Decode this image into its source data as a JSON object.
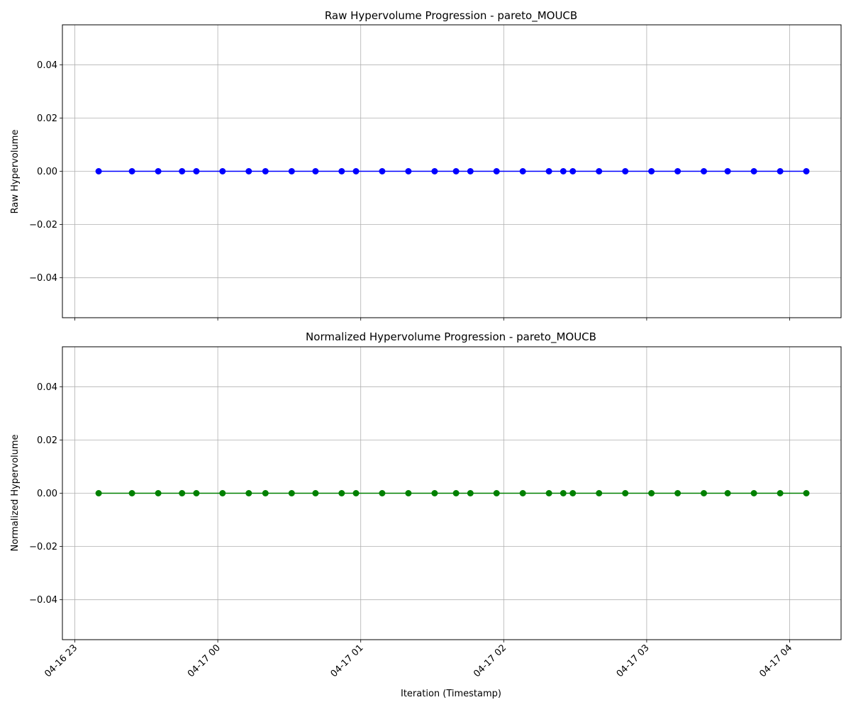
{
  "chart_data": [
    {
      "type": "line",
      "title": "Raw Hypervolume Progression - pareto_MOUCB",
      "xlabel": "",
      "ylabel": "Raw Hypervolume",
      "ylim": [
        -0.055,
        0.055
      ],
      "yticks": [
        -0.04,
        -0.02,
        0.0,
        0.02,
        0.04
      ],
      "ytick_labels": [
        "−0.04",
        "−0.02",
        "0.00",
        "0.02",
        "0.04"
      ],
      "grid": true,
      "marker": "circle",
      "color": "#0000ff",
      "series": [
        {
          "x": [
            "2025-04-16 23:10",
            "2025-04-16 23:24",
            "2025-04-16 23:35",
            "2025-04-16 23:45",
            "2025-04-16 23:51",
            "2025-04-17 00:02",
            "2025-04-17 00:13",
            "2025-04-17 00:20",
            "2025-04-17 00:31",
            "2025-04-17 00:41",
            "2025-04-17 00:52",
            "2025-04-17 00:58",
            "2025-04-17 01:09",
            "2025-04-17 01:20",
            "2025-04-17 01:31",
            "2025-04-17 01:40",
            "2025-04-17 01:46",
            "2025-04-17 01:57",
            "2025-04-17 02:08",
            "2025-04-17 02:19",
            "2025-04-17 02:25",
            "2025-04-17 02:29",
            "2025-04-17 02:40",
            "2025-04-17 02:51",
            "2025-04-17 03:02",
            "2025-04-17 03:13",
            "2025-04-17 03:24",
            "2025-04-17 03:34",
            "2025-04-17 03:45",
            "2025-04-17 03:56",
            "2025-04-17 04:07"
          ],
          "y": [
            0,
            0,
            0,
            0,
            0,
            0,
            0,
            0,
            0,
            0,
            0,
            0,
            0,
            0,
            0,
            0,
            0,
            0,
            0,
            0,
            0,
            0,
            0,
            0,
            0,
            0,
            0,
            0,
            0,
            0,
            0
          ]
        }
      ]
    },
    {
      "type": "line",
      "title": "Normalized Hypervolume Progression - pareto_MOUCB",
      "xlabel": "Iteration (Timestamp)",
      "ylabel": "Normalized Hypervolume",
      "ylim": [
        -0.055,
        0.055
      ],
      "yticks": [
        -0.04,
        -0.02,
        0.0,
        0.02,
        0.04
      ],
      "ytick_labels": [
        "−0.04",
        "−0.02",
        "0.00",
        "0.02",
        "0.04"
      ],
      "grid": true,
      "marker": "circle",
      "color": "#008000",
      "xticks": [
        "2025-04-16 23:00",
        "2025-04-17 00:00",
        "2025-04-17 01:00",
        "2025-04-17 02:00",
        "2025-04-17 03:00",
        "2025-04-17 04:00"
      ],
      "xtick_labels": [
        "04-16 23",
        "04-17 00",
        "04-17 01",
        "04-17 02",
        "04-17 03",
        "04-17 04"
      ],
      "series": [
        {
          "x": [
            "2025-04-16 23:10",
            "2025-04-16 23:24",
            "2025-04-16 23:35",
            "2025-04-16 23:45",
            "2025-04-16 23:51",
            "2025-04-17 00:02",
            "2025-04-17 00:13",
            "2025-04-17 00:20",
            "2025-04-17 00:31",
            "2025-04-17 00:41",
            "2025-04-17 00:52",
            "2025-04-17 00:58",
            "2025-04-17 01:09",
            "2025-04-17 01:20",
            "2025-04-17 01:31",
            "2025-04-17 01:40",
            "2025-04-17 01:46",
            "2025-04-17 01:57",
            "2025-04-17 02:08",
            "2025-04-17 02:19",
            "2025-04-17 02:25",
            "2025-04-17 02:29",
            "2025-04-17 02:40",
            "2025-04-17 02:51",
            "2025-04-17 03:02",
            "2025-04-17 03:13",
            "2025-04-17 03:24",
            "2025-04-17 03:34",
            "2025-04-17 03:45",
            "2025-04-17 03:56",
            "2025-04-17 04:07"
          ],
          "y": [
            0,
            0,
            0,
            0,
            0,
            0,
            0,
            0,
            0,
            0,
            0,
            0,
            0,
            0,
            0,
            0,
            0,
            0,
            0,
            0,
            0,
            0,
            0,
            0,
            0,
            0,
            0,
            0,
            0,
            0,
            0
          ]
        }
      ]
    }
  ]
}
